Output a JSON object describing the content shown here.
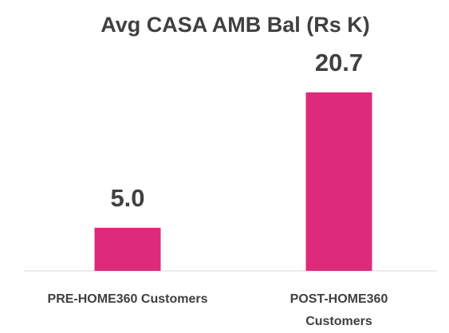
{
  "chart_data": {
    "type": "bar",
    "title": "Avg CASA AMB Bal (Rs K)",
    "categories": [
      "PRE-HOME360 Customers",
      "POST-HOME360 Customers"
    ],
    "values": [
      5.0,
      20.7
    ],
    "value_labels": [
      "5.0",
      "20.7"
    ],
    "color": "#dd2a7b"
  }
}
